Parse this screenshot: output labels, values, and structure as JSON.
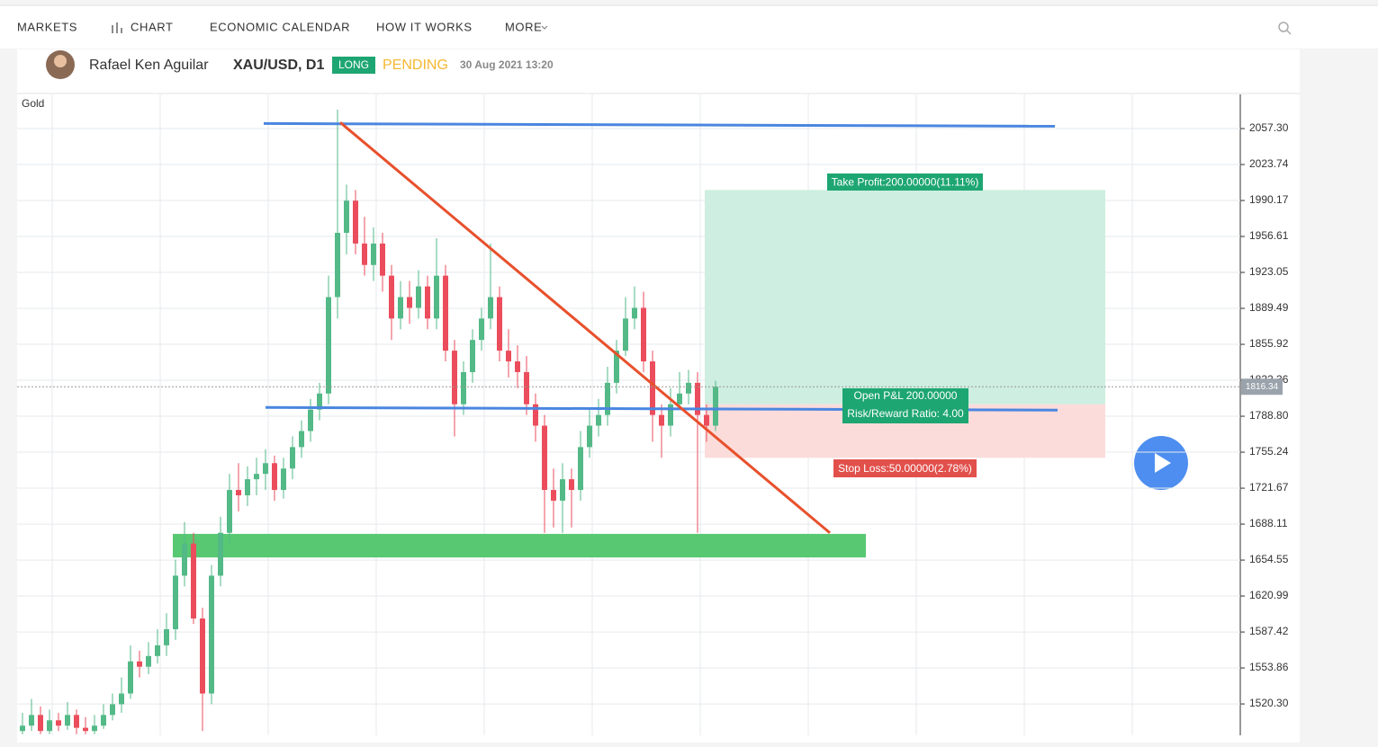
{
  "nav": {
    "items": [
      "MARKETS",
      "CHART",
      "ECONOMIC CALENDAR",
      "HOW IT WORKS",
      "MORE"
    ]
  },
  "header": {
    "author": "Rafael Ken Aguilar",
    "symbol": "XAU/USD, D1",
    "direction": "LONG",
    "status": "PENDING",
    "date": "30 Aug 2021 13:20"
  },
  "chart_data": {
    "type": "candlestick",
    "title": "Gold",
    "open": [
      1495,
      1500,
      1510,
      1495,
      1505,
      1500,
      1510,
      1498,
      1495,
      1500,
      1510,
      1520,
      1530,
      1560,
      1555,
      1565,
      1575,
      1590,
      1640,
      1670,
      1600,
      1530,
      1640,
      1680,
      1720,
      1715,
      1730,
      1735,
      1745,
      1720,
      1740,
      1760,
      1775,
      1795,
      1810,
      1900,
      1960,
      1990,
      1950,
      1930,
      1950,
      1920,
      1880,
      1900,
      1890,
      1910,
      1880,
      1920,
      1850,
      1800,
      1830,
      1860,
      1880,
      1900,
      1850,
      1840,
      1830,
      1800,
      1780,
      1720,
      1710,
      1730,
      1720,
      1760,
      1780,
      1790,
      1820,
      1850,
      1880,
      1890,
      1840,
      1790,
      1780,
      1800,
      1810,
      1820,
      1790,
      1780
    ],
    "high": [
      1512,
      1525,
      1518,
      1515,
      1512,
      1522,
      1515,
      1508,
      1510,
      1520,
      1530,
      1545,
      1575,
      1570,
      1578,
      1590,
      1605,
      1655,
      1690,
      1680,
      1610,
      1650,
      1695,
      1735,
      1745,
      1742,
      1750,
      1758,
      1752,
      1750,
      1770,
      1785,
      1805,
      1820,
      1920,
      2075,
      2005,
      2000,
      1975,
      1965,
      1960,
      1930,
      1915,
      1915,
      1925,
      1920,
      1955,
      1930,
      1860,
      1840,
      1870,
      1890,
      1950,
      1910,
      1870,
      1855,
      1845,
      1810,
      1790,
      1740,
      1745,
      1740,
      1775,
      1795,
      1805,
      1835,
      1860,
      1900,
      1910,
      1905,
      1850,
      1800,
      1815,
      1830,
      1832,
      1830,
      1800,
      1822
    ],
    "low": [
      1492,
      1495,
      1492,
      1492,
      1495,
      1496,
      1492,
      1492,
      1492,
      1497,
      1505,
      1512,
      1525,
      1545,
      1548,
      1558,
      1565,
      1580,
      1630,
      1595,
      1495,
      1520,
      1630,
      1670,
      1700,
      1705,
      1715,
      1720,
      1710,
      1712,
      1730,
      1750,
      1765,
      1785,
      1800,
      1880,
      1940,
      1940,
      1920,
      1915,
      1905,
      1860,
      1870,
      1875,
      1880,
      1870,
      1870,
      1840,
      1770,
      1790,
      1820,
      1850,
      1870,
      1840,
      1825,
      1815,
      1790,
      1765,
      1680,
      1685,
      1680,
      1685,
      1710,
      1750,
      1770,
      1780,
      1810,
      1845,
      1870,
      1830,
      1765,
      1750,
      1770,
      1795,
      1800,
      1680,
      1765,
      1775
    ],
    "close": [
      1500,
      1510,
      1495,
      1505,
      1500,
      1510,
      1498,
      1495,
      1500,
      1510,
      1520,
      1530,
      1560,
      1555,
      1565,
      1575,
      1590,
      1640,
      1670,
      1600,
      1530,
      1640,
      1680,
      1720,
      1715,
      1730,
      1735,
      1745,
      1720,
      1740,
      1760,
      1775,
      1795,
      1810,
      1900,
      1960,
      1990,
      1950,
      1930,
      1950,
      1920,
      1880,
      1900,
      1890,
      1910,
      1880,
      1920,
      1850,
      1800,
      1830,
      1860,
      1880,
      1900,
      1850,
      1840,
      1830,
      1800,
      1780,
      1720,
      1710,
      1730,
      1720,
      1760,
      1780,
      1790,
      1820,
      1850,
      1880,
      1890,
      1840,
      1790,
      1780,
      1800,
      1810,
      1820,
      1790,
      1780,
      1816.34
    ],
    "up_color": "#53b987",
    "down_color": "#eb4d5c",
    "ylim": [
      1491,
      2089.2
    ],
    "yticks": [
      {
        "value": 2057.3,
        "label": "2057.30"
      },
      2023.74,
      1990.17,
      1956.61,
      1923.05,
      1889.49,
      1855.92,
      1822.36,
      {
        "value": 1788.8,
        "label": "1788.80"
      },
      1755.24,
      1721.67,
      1688.11,
      1654.55,
      1620.99,
      1587.42,
      1553.86,
      {
        "value": 1520.3,
        "label": "1520.30"
      }
    ],
    "grid": true,
    "drawings": {
      "resistance": 2062,
      "support": 1797,
      "support_zone": [
        1657,
        1679
      ],
      "trendline": [
        2063,
        1680
      ]
    },
    "position": {
      "entry": 1800,
      "take_profit": 2000,
      "stop_loss": 1750,
      "take_profit_label": "Take Profit:200.00000(11.11%)",
      "pnl_label": "Open P&L 200.00000",
      "ratio_label": "Risk/Reward Ratio: 4.00",
      "stop_loss_label": "Stop Loss:50.00000(2.78%)"
    }
  }
}
